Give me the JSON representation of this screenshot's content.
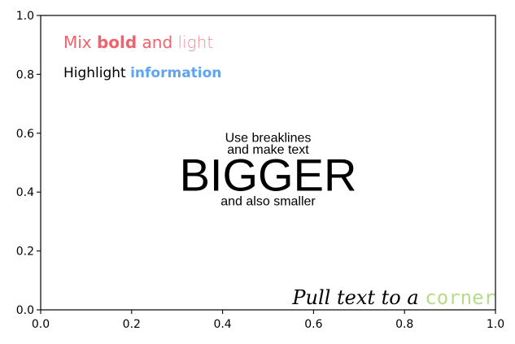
{
  "chart_data": {
    "type": "scatter",
    "title": "",
    "xlabel": "",
    "ylabel": "",
    "xlim": [
      0,
      1
    ],
    "ylim": [
      0,
      1
    ],
    "grid": false,
    "x_ticks": [
      {
        "value": 0.0,
        "label": "0.0"
      },
      {
        "value": 0.2,
        "label": "0.2"
      },
      {
        "value": 0.4,
        "label": "0.4"
      },
      {
        "value": 0.6,
        "label": "0.6"
      },
      {
        "value": 0.8,
        "label": "0.8"
      },
      {
        "value": 1.0,
        "label": "1.0"
      }
    ],
    "y_ticks": [
      {
        "value": 0.0,
        "label": "0.0"
      },
      {
        "value": 0.2,
        "label": "0.2"
      },
      {
        "value": 0.4,
        "label": "0.4"
      },
      {
        "value": 0.6,
        "label": "0.6"
      },
      {
        "value": 0.8,
        "label": "0.8"
      },
      {
        "value": 1.0,
        "label": "1.0"
      }
    ],
    "annotations": [
      {
        "name": "mix-bold-light",
        "x": 0.05,
        "y": 0.89,
        "align": "left",
        "runs": [
          {
            "text": "Mix ",
            "weight": "normal",
            "color": "#f4606c"
          },
          {
            "text": "bold",
            "weight": "bold",
            "color": "#f4606c"
          },
          {
            "text": " and ",
            "weight": "normal",
            "color": "#f4606c"
          },
          {
            "text": "light",
            "weight": "light",
            "color": "#f48a93"
          }
        ]
      },
      {
        "name": "highlight-information",
        "x": 0.05,
        "y": 0.79,
        "align": "left",
        "runs": [
          {
            "text": "Highlight ",
            "weight": "normal",
            "color": "#000000"
          },
          {
            "text": "information",
            "weight": "bold",
            "color": "#5fa4f0"
          }
        ]
      },
      {
        "name": "use-breaklines",
        "x": 0.5,
        "y": 0.57,
        "align": "center",
        "runs": [
          {
            "text": "Use breaklines",
            "weight": "normal",
            "color": "#000000"
          }
        ]
      },
      {
        "name": "make-text",
        "x": 0.5,
        "y": 0.53,
        "align": "center",
        "runs": [
          {
            "text": "and make text",
            "weight": "normal",
            "color": "#000000"
          }
        ]
      },
      {
        "name": "bigger",
        "x": 0.5,
        "y": 0.405,
        "align": "center",
        "runs": [
          {
            "text": "BIGGER",
            "weight": "normal",
            "color": "#000000"
          }
        ]
      },
      {
        "name": "also-smaller",
        "x": 0.5,
        "y": 0.355,
        "align": "center",
        "runs": [
          {
            "text": "and also smaller",
            "weight": "normal",
            "color": "#000000"
          }
        ]
      },
      {
        "name": "pull-text-corner",
        "x": 1.0,
        "y": 0.02,
        "align": "right",
        "runs": [
          {
            "text": "Pull text to a ",
            "weight": "normal",
            "color": "#000000"
          },
          {
            "text": "corner",
            "weight": "normal",
            "color": "#b7dc8c"
          }
        ]
      }
    ]
  }
}
